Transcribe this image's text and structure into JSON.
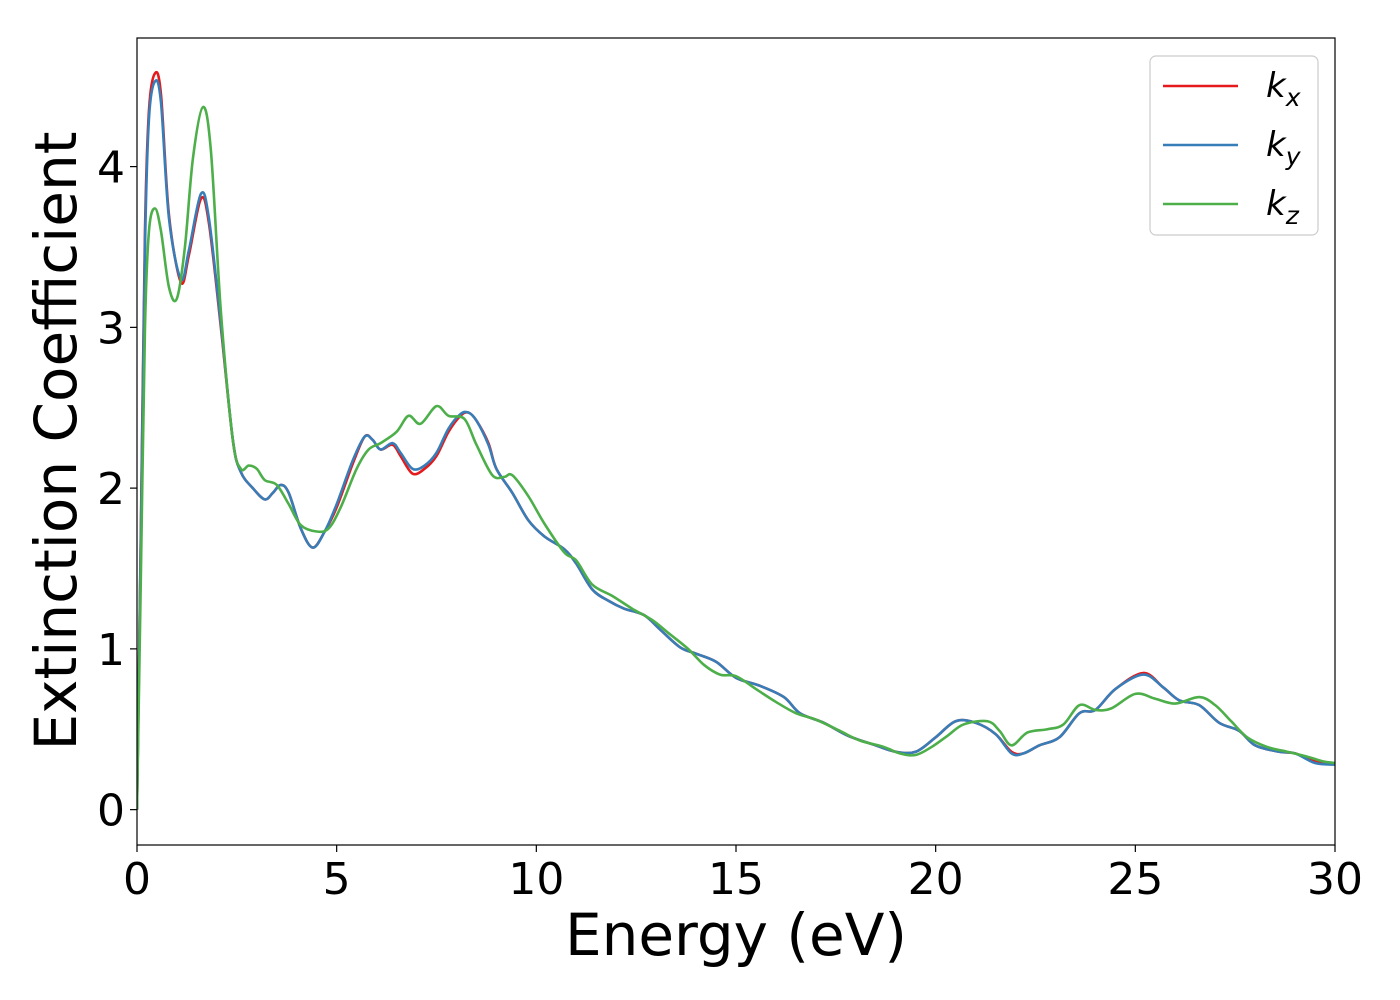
{
  "chart_data": {
    "type": "line",
    "title": "",
    "xlabel": "Energy (eV)",
    "ylabel": "Extinction Coefficient",
    "xlim": [
      0,
      30
    ],
    "ylim": [
      -0.22,
      4.8
    ],
    "xticks": [
      0,
      5,
      10,
      15,
      20,
      25,
      30
    ],
    "yticks": [
      0,
      1,
      2,
      3,
      4
    ],
    "grid": false,
    "legend_position": "top-right",
    "series": [
      {
        "name": "k_x",
        "label_base": "k",
        "label_sub": "x",
        "color": "#e41a1c",
        "points": [
          [
            0,
            0
          ],
          [
            0.1,
            1.8
          ],
          [
            0.2,
            3.6
          ],
          [
            0.3,
            4.35
          ],
          [
            0.45,
            4.58
          ],
          [
            0.6,
            4.45
          ],
          [
            0.8,
            3.7
          ],
          [
            1.1,
            3.28
          ],
          [
            1.3,
            3.45
          ],
          [
            1.6,
            3.8
          ],
          [
            1.8,
            3.65
          ],
          [
            2.1,
            3.0
          ],
          [
            2.4,
            2.3
          ],
          [
            2.6,
            2.1
          ],
          [
            2.9,
            2.0
          ],
          [
            3.2,
            1.93
          ],
          [
            3.4,
            1.97
          ],
          [
            3.6,
            2.02
          ],
          [
            3.8,
            1.97
          ],
          [
            4.1,
            1.75
          ],
          [
            4.4,
            1.63
          ],
          [
            4.7,
            1.73
          ],
          [
            5.0,
            1.88
          ],
          [
            5.4,
            2.15
          ],
          [
            5.7,
            2.32
          ],
          [
            5.9,
            2.3
          ],
          [
            6.1,
            2.24
          ],
          [
            6.4,
            2.27
          ],
          [
            6.6,
            2.2
          ],
          [
            6.9,
            2.09
          ],
          [
            7.2,
            2.12
          ],
          [
            7.5,
            2.2
          ],
          [
            7.8,
            2.35
          ],
          [
            8.1,
            2.45
          ],
          [
            8.3,
            2.47
          ],
          [
            8.5,
            2.42
          ],
          [
            8.8,
            2.28
          ],
          [
            9.0,
            2.12
          ],
          [
            9.4,
            1.97
          ],
          [
            9.8,
            1.8
          ],
          [
            10.2,
            1.7
          ],
          [
            10.7,
            1.62
          ],
          [
            11.0,
            1.53
          ],
          [
            11.4,
            1.37
          ],
          [
            11.8,
            1.3
          ],
          [
            12.2,
            1.25
          ],
          [
            12.7,
            1.21
          ],
          [
            13.1,
            1.12
          ],
          [
            13.6,
            1.01
          ],
          [
            14.0,
            0.97
          ],
          [
            14.5,
            0.92
          ],
          [
            15.0,
            0.82
          ],
          [
            15.6,
            0.77
          ],
          [
            16.2,
            0.7
          ],
          [
            16.6,
            0.6
          ],
          [
            17.2,
            0.54
          ],
          [
            17.8,
            0.46
          ],
          [
            18.5,
            0.4
          ],
          [
            19.0,
            0.36
          ],
          [
            19.5,
            0.36
          ],
          [
            20.0,
            0.45
          ],
          [
            20.5,
            0.55
          ],
          [
            21.0,
            0.54
          ],
          [
            21.5,
            0.47
          ],
          [
            21.9,
            0.36
          ],
          [
            22.2,
            0.35
          ],
          [
            22.6,
            0.4
          ],
          [
            23.1,
            0.45
          ],
          [
            23.6,
            0.6
          ],
          [
            24.0,
            0.62
          ],
          [
            24.5,
            0.75
          ],
          [
            25.2,
            0.85
          ],
          [
            25.7,
            0.76
          ],
          [
            26.1,
            0.68
          ],
          [
            26.6,
            0.65
          ],
          [
            27.1,
            0.54
          ],
          [
            27.6,
            0.49
          ],
          [
            28.0,
            0.4
          ],
          [
            28.6,
            0.36
          ],
          [
            29.0,
            0.35
          ],
          [
            29.5,
            0.3
          ],
          [
            30.0,
            0.28
          ]
        ]
      },
      {
        "name": "k_y",
        "label_base": "k",
        "label_sub": "y",
        "color": "#377eb8",
        "points": [
          [
            0,
            0
          ],
          [
            0.1,
            1.75
          ],
          [
            0.2,
            3.5
          ],
          [
            0.3,
            4.3
          ],
          [
            0.45,
            4.53
          ],
          [
            0.6,
            4.4
          ],
          [
            0.8,
            3.68
          ],
          [
            1.1,
            3.3
          ],
          [
            1.3,
            3.48
          ],
          [
            1.6,
            3.83
          ],
          [
            1.8,
            3.68
          ],
          [
            2.1,
            3.02
          ],
          [
            2.4,
            2.3
          ],
          [
            2.6,
            2.1
          ],
          [
            2.9,
            2.0
          ],
          [
            3.2,
            1.93
          ],
          [
            3.4,
            1.97
          ],
          [
            3.6,
            2.02
          ],
          [
            3.8,
            1.97
          ],
          [
            4.1,
            1.75
          ],
          [
            4.4,
            1.63
          ],
          [
            4.7,
            1.73
          ],
          [
            5.0,
            1.9
          ],
          [
            5.4,
            2.17
          ],
          [
            5.7,
            2.32
          ],
          [
            5.9,
            2.3
          ],
          [
            6.1,
            2.24
          ],
          [
            6.4,
            2.28
          ],
          [
            6.6,
            2.22
          ],
          [
            6.9,
            2.12
          ],
          [
            7.2,
            2.14
          ],
          [
            7.5,
            2.22
          ],
          [
            7.8,
            2.37
          ],
          [
            8.1,
            2.46
          ],
          [
            8.3,
            2.47
          ],
          [
            8.5,
            2.42
          ],
          [
            8.8,
            2.27
          ],
          [
            9.0,
            2.12
          ],
          [
            9.4,
            1.97
          ],
          [
            9.8,
            1.8
          ],
          [
            10.2,
            1.7
          ],
          [
            10.7,
            1.62
          ],
          [
            11.0,
            1.53
          ],
          [
            11.4,
            1.37
          ],
          [
            11.8,
            1.3
          ],
          [
            12.2,
            1.25
          ],
          [
            12.7,
            1.21
          ],
          [
            13.1,
            1.12
          ],
          [
            13.6,
            1.01
          ],
          [
            14.0,
            0.97
          ],
          [
            14.5,
            0.92
          ],
          [
            15.0,
            0.82
          ],
          [
            15.6,
            0.77
          ],
          [
            16.2,
            0.7
          ],
          [
            16.6,
            0.6
          ],
          [
            17.2,
            0.54
          ],
          [
            17.8,
            0.46
          ],
          [
            18.5,
            0.4
          ],
          [
            19.0,
            0.36
          ],
          [
            19.5,
            0.36
          ],
          [
            20.0,
            0.45
          ],
          [
            20.5,
            0.55
          ],
          [
            21.0,
            0.54
          ],
          [
            21.5,
            0.47
          ],
          [
            21.9,
            0.35
          ],
          [
            22.2,
            0.35
          ],
          [
            22.6,
            0.4
          ],
          [
            23.1,
            0.45
          ],
          [
            23.6,
            0.6
          ],
          [
            24.0,
            0.62
          ],
          [
            24.5,
            0.75
          ],
          [
            25.2,
            0.84
          ],
          [
            25.7,
            0.76
          ],
          [
            26.1,
            0.68
          ],
          [
            26.6,
            0.65
          ],
          [
            27.1,
            0.54
          ],
          [
            27.6,
            0.49
          ],
          [
            28.0,
            0.4
          ],
          [
            28.6,
            0.36
          ],
          [
            29.0,
            0.35
          ],
          [
            29.5,
            0.29
          ],
          [
            30.0,
            0.28
          ]
        ]
      },
      {
        "name": "k_z",
        "label_base": "k",
        "label_sub": "z",
        "color": "#4daf4a",
        "points": [
          [
            0,
            0
          ],
          [
            0.1,
            1.5
          ],
          [
            0.2,
            3.0
          ],
          [
            0.3,
            3.6
          ],
          [
            0.45,
            3.74
          ],
          [
            0.6,
            3.6
          ],
          [
            0.8,
            3.25
          ],
          [
            1.0,
            3.18
          ],
          [
            1.2,
            3.5
          ],
          [
            1.4,
            4.05
          ],
          [
            1.65,
            4.37
          ],
          [
            1.85,
            4.1
          ],
          [
            2.1,
            3.1
          ],
          [
            2.4,
            2.3
          ],
          [
            2.6,
            2.12
          ],
          [
            2.8,
            2.14
          ],
          [
            3.0,
            2.12
          ],
          [
            3.2,
            2.05
          ],
          [
            3.5,
            2.02
          ],
          [
            3.8,
            1.9
          ],
          [
            4.1,
            1.77
          ],
          [
            4.5,
            1.73
          ],
          [
            4.8,
            1.75
          ],
          [
            5.1,
            1.88
          ],
          [
            5.5,
            2.12
          ],
          [
            5.8,
            2.24
          ],
          [
            6.1,
            2.28
          ],
          [
            6.5,
            2.35
          ],
          [
            6.8,
            2.45
          ],
          [
            7.1,
            2.4
          ],
          [
            7.5,
            2.51
          ],
          [
            7.8,
            2.45
          ],
          [
            8.2,
            2.43
          ],
          [
            8.5,
            2.27
          ],
          [
            8.9,
            2.08
          ],
          [
            9.2,
            2.07
          ],
          [
            9.4,
            2.08
          ],
          [
            9.8,
            1.95
          ],
          [
            10.2,
            1.78
          ],
          [
            10.7,
            1.6
          ],
          [
            11.0,
            1.55
          ],
          [
            11.4,
            1.4
          ],
          [
            11.9,
            1.33
          ],
          [
            12.4,
            1.25
          ],
          [
            12.9,
            1.18
          ],
          [
            13.3,
            1.1
          ],
          [
            13.8,
            1.0
          ],
          [
            14.2,
            0.9
          ],
          [
            14.6,
            0.84
          ],
          [
            15.0,
            0.83
          ],
          [
            15.5,
            0.75
          ],
          [
            16.0,
            0.67
          ],
          [
            16.5,
            0.6
          ],
          [
            17.0,
            0.56
          ],
          [
            17.6,
            0.49
          ],
          [
            18.1,
            0.43
          ],
          [
            18.7,
            0.39
          ],
          [
            19.1,
            0.35
          ],
          [
            19.5,
            0.34
          ],
          [
            19.9,
            0.39
          ],
          [
            20.3,
            0.46
          ],
          [
            20.7,
            0.53
          ],
          [
            21.3,
            0.55
          ],
          [
            21.6,
            0.49
          ],
          [
            21.9,
            0.4
          ],
          [
            22.3,
            0.48
          ],
          [
            22.8,
            0.5
          ],
          [
            23.2,
            0.53
          ],
          [
            23.6,
            0.65
          ],
          [
            24.0,
            0.62
          ],
          [
            24.4,
            0.63
          ],
          [
            25.0,
            0.72
          ],
          [
            25.5,
            0.69
          ],
          [
            26.0,
            0.66
          ],
          [
            26.6,
            0.7
          ],
          [
            27.0,
            0.65
          ],
          [
            27.4,
            0.55
          ],
          [
            27.8,
            0.45
          ],
          [
            28.3,
            0.39
          ],
          [
            28.8,
            0.36
          ],
          [
            29.3,
            0.33
          ],
          [
            29.7,
            0.3
          ],
          [
            30.0,
            0.29
          ]
        ]
      }
    ]
  }
}
